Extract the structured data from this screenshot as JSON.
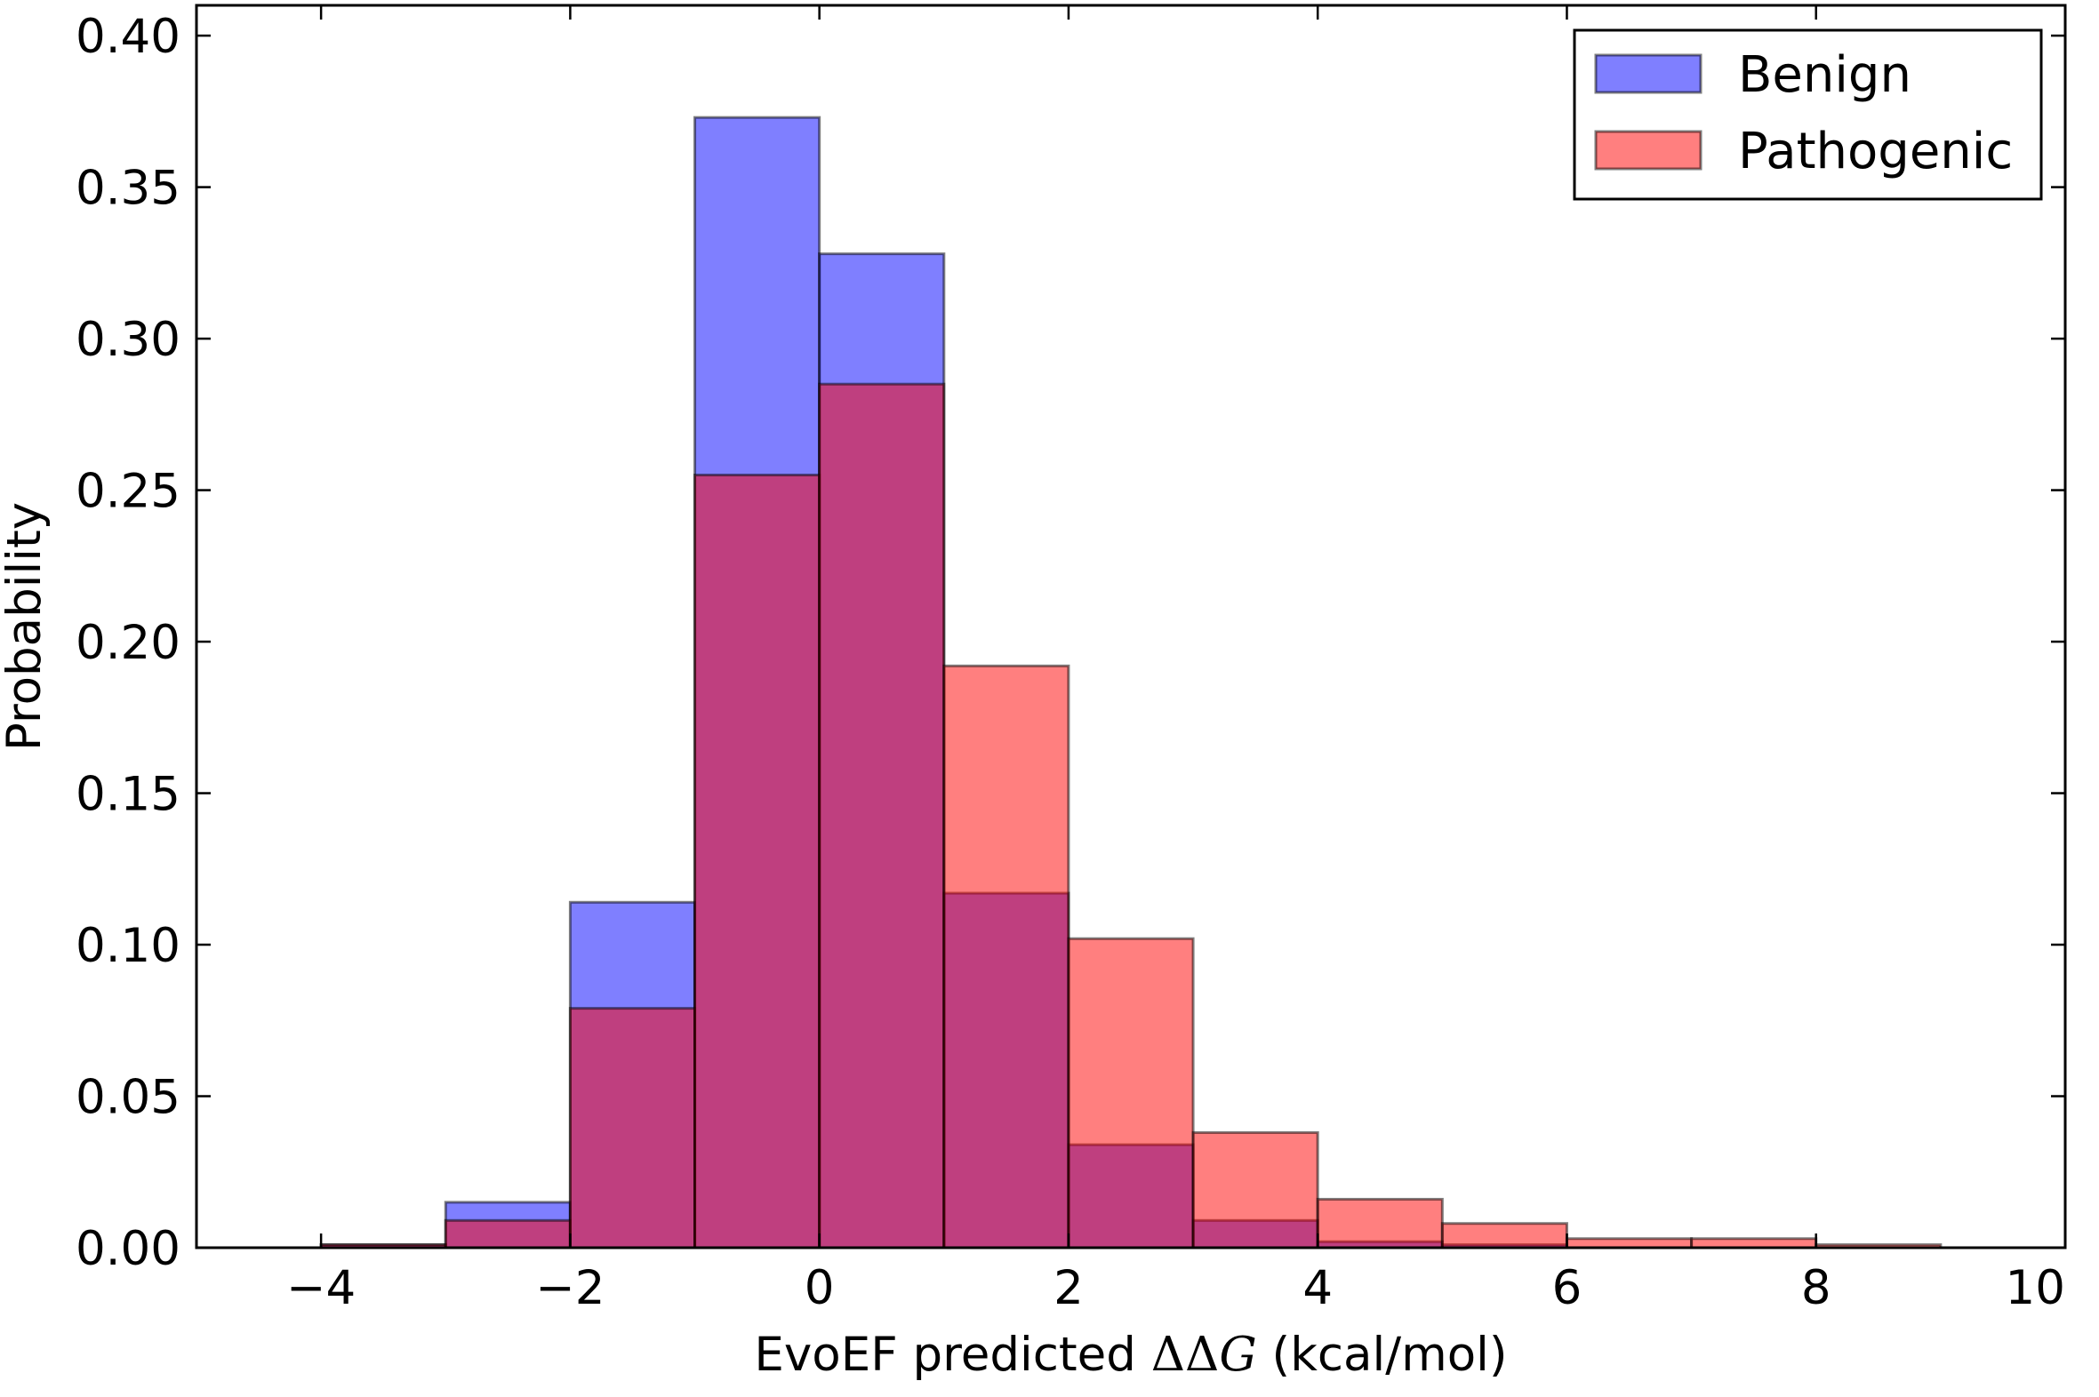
{
  "chart_data": {
    "type": "bar",
    "histogram": true,
    "xlabel_prefix": "EvoEF predicted ",
    "xlabel_math": "ΔΔ",
    "xlabel_math_var": "G",
    "xlabel_suffix": " (kcal/mol)",
    "ylabel": "Probability",
    "xlim": [
      -5,
      10
    ],
    "ylim": [
      0,
      0.41
    ],
    "xticks": [
      -4,
      -2,
      0,
      2,
      4,
      6,
      8,
      10
    ],
    "xtick_labels": [
      "−4",
      "−2",
      "0",
      "2",
      "4",
      "6",
      "8",
      "10"
    ],
    "yticks": [
      0.0,
      0.05,
      0.1,
      0.15,
      0.2,
      0.25,
      0.3,
      0.35,
      0.4
    ],
    "ytick_labels": [
      "0.00",
      "0.05",
      "0.10",
      "0.15",
      "0.20",
      "0.25",
      "0.30",
      "0.35",
      "0.40"
    ],
    "bin_edges": [
      -4,
      -3,
      -2,
      -1,
      0,
      1,
      2,
      3,
      4,
      5,
      6,
      7,
      8,
      9,
      10
    ],
    "series": [
      {
        "name": "Benign",
        "color": "#0000ff",
        "alpha": 0.5,
        "values": [
          0.001,
          0.015,
          0.114,
          0.373,
          0.328,
          0.117,
          0.034,
          0.009,
          0.002,
          0.001,
          0.0,
          0.0,
          0.0,
          0.0
        ]
      },
      {
        "name": "Pathogenic",
        "color": "#ff0000",
        "alpha": 0.5,
        "values": [
          0.001,
          0.009,
          0.079,
          0.255,
          0.285,
          0.192,
          0.102,
          0.038,
          0.016,
          0.008,
          0.003,
          0.003,
          0.001,
          0.0
        ]
      }
    ],
    "legend_position": "top-right",
    "grid": false
  }
}
